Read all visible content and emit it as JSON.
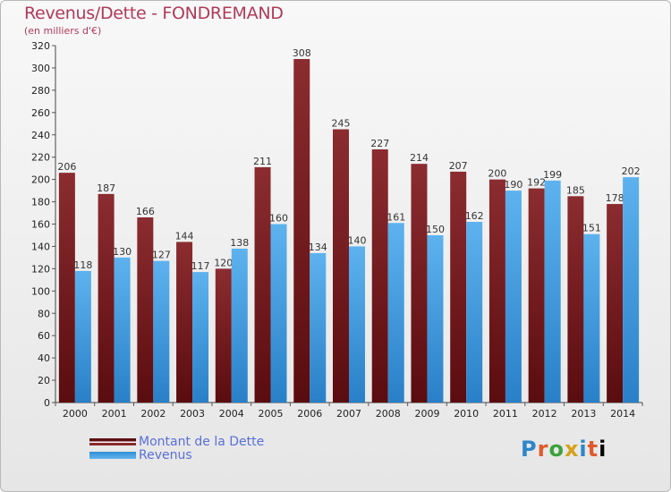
{
  "header": {
    "title": "Revenus/Dette - FONDREMAND",
    "subtitle": "(en milliers d'€)"
  },
  "chart_data": {
    "type": "bar",
    "title": "Revenus/Dette - FONDREMAND",
    "subtitle": "(en milliers d'€)",
    "categories": [
      "2000",
      "2001",
      "2002",
      "2003",
      "2004",
      "2005",
      "2006",
      "2007",
      "2008",
      "2009",
      "2010",
      "2011",
      "2012",
      "2013",
      "2014"
    ],
    "series": [
      {
        "name": "Montant de la Dette",
        "color": "#7a1f22",
        "values": [
          206,
          187,
          166,
          144,
          120,
          211,
          308,
          245,
          227,
          214,
          207,
          200,
          192,
          185,
          178
        ]
      },
      {
        "name": "Revenus",
        "color": "#3d9de0",
        "values": [
          118,
          130,
          127,
          117,
          138,
          160,
          134,
          140,
          161,
          150,
          162,
          190,
          199,
          151,
          202
        ]
      }
    ],
    "ylim": [
      0,
      320
    ],
    "ytick_step": 20,
    "grid": false,
    "legend_position": "bottom-left"
  },
  "legend": {
    "items": [
      {
        "label": "Montant de la Dette",
        "color": "#5c0f12"
      },
      {
        "label": "Revenus",
        "color": "#3d9de0"
      }
    ]
  },
  "logo": {
    "letters": [
      "P",
      "r",
      "o",
      "x",
      "i",
      "t",
      "i"
    ]
  }
}
